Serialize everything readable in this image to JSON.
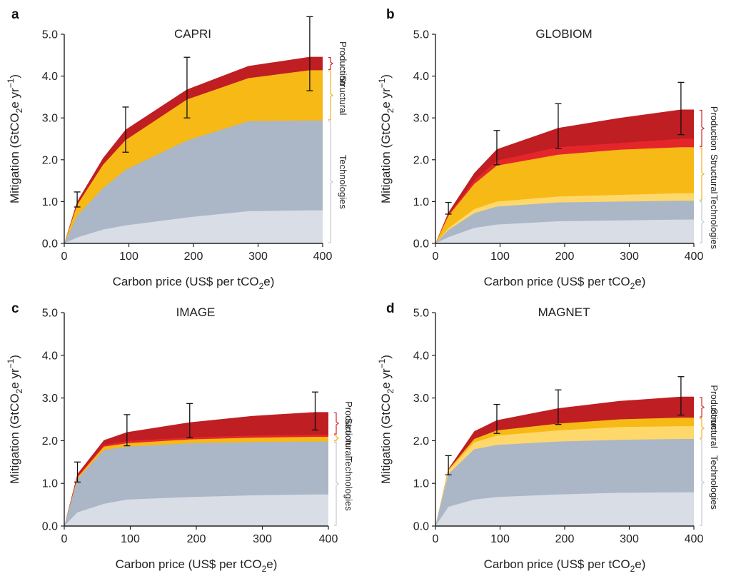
{
  "figure": {
    "colors": {
      "tech_light": "#d8dde6",
      "tech_dark": "#abb6c7",
      "struct_light": "#ffd86b",
      "struct_dark": "#f7b915",
      "prod_light": "#e4262b",
      "prod_dark": "#bf1e23",
      "bracket_prod": "#d1262b",
      "bracket_struct": "#f2b01e",
      "bracket_tech": "#c3c9d2",
      "axis": "#222222"
    }
  },
  "chart_data": [
    {
      "type": "area",
      "panel_letter": "a",
      "title": "CAPRI",
      "xlabel_parts": [
        "Carbon price (US$ per tCO",
        "2",
        "e)"
      ],
      "ylabel_parts": [
        "Mitigation (GtCO",
        "2",
        "e yr",
        "−1",
        ")"
      ],
      "xlim": [
        0,
        400
      ],
      "ylim": [
        0,
        5
      ],
      "xticks": [
        0,
        100,
        200,
        300,
        400
      ],
      "yticks": [
        0,
        1,
        2,
        3,
        4,
        5
      ],
      "ytick_labels": [
        "0.0",
        "1.0",
        "2.0",
        "3.0",
        "4.0",
        "5.0"
      ],
      "x": [
        0,
        20,
        60,
        95,
        190,
        285,
        380,
        400
      ],
      "series": [
        {
          "cumulative": [
            0,
            0.14,
            0.33,
            0.43,
            0.62,
            0.77,
            0.79,
            0.79
          ],
          "color": "tech_light"
        },
        {
          "cumulative": [
            0,
            0.66,
            1.32,
            1.76,
            2.46,
            2.92,
            2.94,
            2.94
          ],
          "color": "tech_dark"
        },
        {
          "cumulative": [
            0,
            0.92,
            1.88,
            2.47,
            3.44,
            3.95,
            4.14,
            4.14
          ],
          "color": "struct_dark"
        },
        {
          "cumulative": [
            0,
            1.0,
            2.04,
            2.72,
            3.68,
            4.24,
            4.46,
            4.46
          ],
          "color": "prod_dark"
        }
      ],
      "error_bars": [
        {
          "x": 20,
          "low": 0.87,
          "high": 1.23
        },
        {
          "x": 95,
          "low": 2.18,
          "high": 3.26
        },
        {
          "x": 190,
          "low": 3.0,
          "high": 4.45
        },
        {
          "x": 380,
          "low": 3.65,
          "high": 5.42
        }
      ],
      "brackets": [
        {
          "label": "Production",
          "low": 4.14,
          "high": 4.46,
          "color": "bracket_prod"
        },
        {
          "label": "Structural",
          "low": 2.94,
          "high": 4.14,
          "color": "bracket_struct"
        },
        {
          "label": "Technologies",
          "low": 0,
          "high": 2.94,
          "color": "bracket_tech"
        }
      ]
    },
    {
      "type": "area",
      "panel_letter": "b",
      "title": "GLOBIOM",
      "xlabel_parts": [
        "Carbon price (US$ per tCO",
        "2",
        "e)"
      ],
      "ylabel_parts": [
        "Mitigation (GtCO",
        "2",
        "e yr",
        "−1",
        ")"
      ],
      "xlim": [
        0,
        400
      ],
      "ylim": [
        0,
        5
      ],
      "xticks": [
        0,
        100,
        200,
        300,
        400
      ],
      "yticks": [
        0,
        1,
        2,
        3,
        4,
        5
      ],
      "ytick_labels": [
        "0.0",
        "1.0",
        "2.0",
        "3.0",
        "4.0",
        "5.0"
      ],
      "x": [
        0,
        20,
        60,
        95,
        190,
        285,
        380,
        400
      ],
      "series": [
        {
          "cumulative": [
            0,
            0.15,
            0.37,
            0.45,
            0.53,
            0.55,
            0.57,
            0.57
          ],
          "color": "tech_light"
        },
        {
          "cumulative": [
            0,
            0.32,
            0.72,
            0.88,
            0.98,
            1.0,
            1.02,
            1.02
          ],
          "color": "tech_dark"
        },
        {
          "cumulative": [
            0,
            0.36,
            0.82,
            1.0,
            1.12,
            1.16,
            1.2,
            1.2
          ],
          "color": "struct_light"
        },
        {
          "cumulative": [
            0,
            0.66,
            1.42,
            1.86,
            2.12,
            2.24,
            2.3,
            2.3
          ],
          "color": "struct_dark"
        },
        {
          "cumulative": [
            0,
            0.68,
            1.5,
            1.98,
            2.3,
            2.4,
            2.5,
            2.5
          ],
          "color": "prod_light"
        },
        {
          "cumulative": [
            0,
            0.74,
            1.68,
            2.25,
            2.76,
            3.0,
            3.2,
            3.2
          ],
          "color": "prod_dark"
        }
      ],
      "error_bars": [
        {
          "x": 20,
          "low": 0.7,
          "high": 0.98
        },
        {
          "x": 95,
          "low": 1.88,
          "high": 2.7
        },
        {
          "x": 190,
          "low": 2.27,
          "high": 3.34
        },
        {
          "x": 380,
          "low": 2.6,
          "high": 3.85
        }
      ],
      "brackets": [
        {
          "label": "Production",
          "low": 2.3,
          "high": 3.2,
          "color": "bracket_prod"
        },
        {
          "label": "Structural",
          "low": 1.02,
          "high": 2.3,
          "color": "bracket_struct"
        },
        {
          "label": "Technologies",
          "low": 0,
          "high": 1.02,
          "color": "bracket_tech"
        }
      ]
    },
    {
      "type": "area",
      "panel_letter": "c",
      "title": "IMAGE",
      "xlabel_parts": [
        "Carbon price (US$ per tCO",
        "2",
        "e)"
      ],
      "ylabel_parts": [
        "Mitigation (GtCO",
        "2",
        "e yr",
        "−1",
        ")"
      ],
      "xlim": [
        0,
        400
      ],
      "ylim": [
        0,
        5
      ],
      "xticks": [
        0,
        100,
        200,
        300,
        400
      ],
      "yticks": [
        0,
        1,
        2,
        3,
        4,
        5
      ],
      "ytick_labels": [
        "0.0",
        "1.0",
        "2.0",
        "3.0",
        "4.0",
        "5.0"
      ],
      "x": [
        0,
        20,
        60,
        95,
        190,
        285,
        380,
        400
      ],
      "series": [
        {
          "cumulative": [
            0,
            0.32,
            0.52,
            0.62,
            0.68,
            0.72,
            0.74,
            0.74
          ],
          "color": "tech_light"
        },
        {
          "cumulative": [
            0,
            1.1,
            1.78,
            1.86,
            1.94,
            1.97,
            1.98,
            1.98
          ],
          "color": "tech_dark"
        },
        {
          "cumulative": [
            0,
            1.14,
            1.86,
            1.94,
            2.03,
            2.07,
            2.09,
            2.09
          ],
          "color": "struct_dark"
        },
        {
          "cumulative": [
            0,
            1.16,
            1.9,
            1.99,
            2.08,
            2.12,
            2.14,
            2.14
          ],
          "color": "prod_light"
        },
        {
          "cumulative": [
            0,
            1.22,
            2.01,
            2.2,
            2.43,
            2.58,
            2.67,
            2.67
          ],
          "color": "prod_dark"
        }
      ],
      "error_bars": [
        {
          "x": 20,
          "low": 1.03,
          "high": 1.5
        },
        {
          "x": 95,
          "low": 1.88,
          "high": 2.61
        },
        {
          "x": 190,
          "low": 2.07,
          "high": 2.87
        },
        {
          "x": 380,
          "low": 2.25,
          "high": 3.14
        }
      ],
      "brackets": [
        {
          "label": "Production",
          "low": 2.14,
          "high": 2.67,
          "color": "bracket_prod"
        },
        {
          "label": "Structural",
          "low": 1.98,
          "high": 2.14,
          "color": "bracket_struct"
        },
        {
          "label": "Technologies",
          "low": 0,
          "high": 1.98,
          "color": "bracket_tech"
        }
      ]
    },
    {
      "type": "area",
      "panel_letter": "d",
      "title": "MAGNET",
      "xlabel_parts": [
        "Carbon price (US$ per tCO",
        "2",
        "e)"
      ],
      "ylabel_parts": [
        "Mitigation (GtCO",
        "2",
        "e yr",
        "−1",
        ")"
      ],
      "xlim": [
        0,
        400
      ],
      "ylim": [
        0,
        5
      ],
      "xticks": [
        0,
        100,
        200,
        300,
        400
      ],
      "yticks": [
        0,
        1,
        2,
        3,
        4,
        5
      ],
      "ytick_labels": [
        "0.0",
        "1.0",
        "2.0",
        "3.0",
        "4.0",
        "5.0"
      ],
      "x": [
        0,
        20,
        60,
        95,
        190,
        285,
        380,
        400
      ],
      "series": [
        {
          "cumulative": [
            0,
            0.45,
            0.62,
            0.68,
            0.74,
            0.78,
            0.79,
            0.79
          ],
          "color": "tech_light"
        },
        {
          "cumulative": [
            0,
            1.22,
            1.8,
            1.9,
            1.98,
            2.02,
            2.04,
            2.04
          ],
          "color": "tech_dark"
        },
        {
          "cumulative": [
            0,
            1.3,
            1.96,
            2.12,
            2.24,
            2.32,
            2.34,
            2.34
          ],
          "color": "struct_light"
        },
        {
          "cumulative": [
            0,
            1.32,
            2.04,
            2.24,
            2.4,
            2.5,
            2.54,
            2.54
          ],
          "color": "struct_dark"
        },
        {
          "cumulative": [
            0,
            1.34,
            2.22,
            2.48,
            2.76,
            2.93,
            3.03,
            3.03
          ],
          "color": "prod_dark"
        }
      ],
      "error_bars": [
        {
          "x": 20,
          "low": 1.2,
          "high": 1.65
        },
        {
          "x": 95,
          "low": 2.17,
          "high": 2.85
        },
        {
          "x": 190,
          "low": 2.38,
          "high": 3.19
        },
        {
          "x": 380,
          "low": 2.6,
          "high": 3.5
        }
      ],
      "brackets": [
        {
          "label": "Production",
          "low": 2.54,
          "high": 3.03,
          "color": "bracket_prod"
        },
        {
          "label": "Structural",
          "low": 2.04,
          "high": 2.54,
          "color": "bracket_struct"
        },
        {
          "label": "Technologies",
          "low": 0,
          "high": 2.04,
          "color": "bracket_tech"
        }
      ]
    }
  ]
}
